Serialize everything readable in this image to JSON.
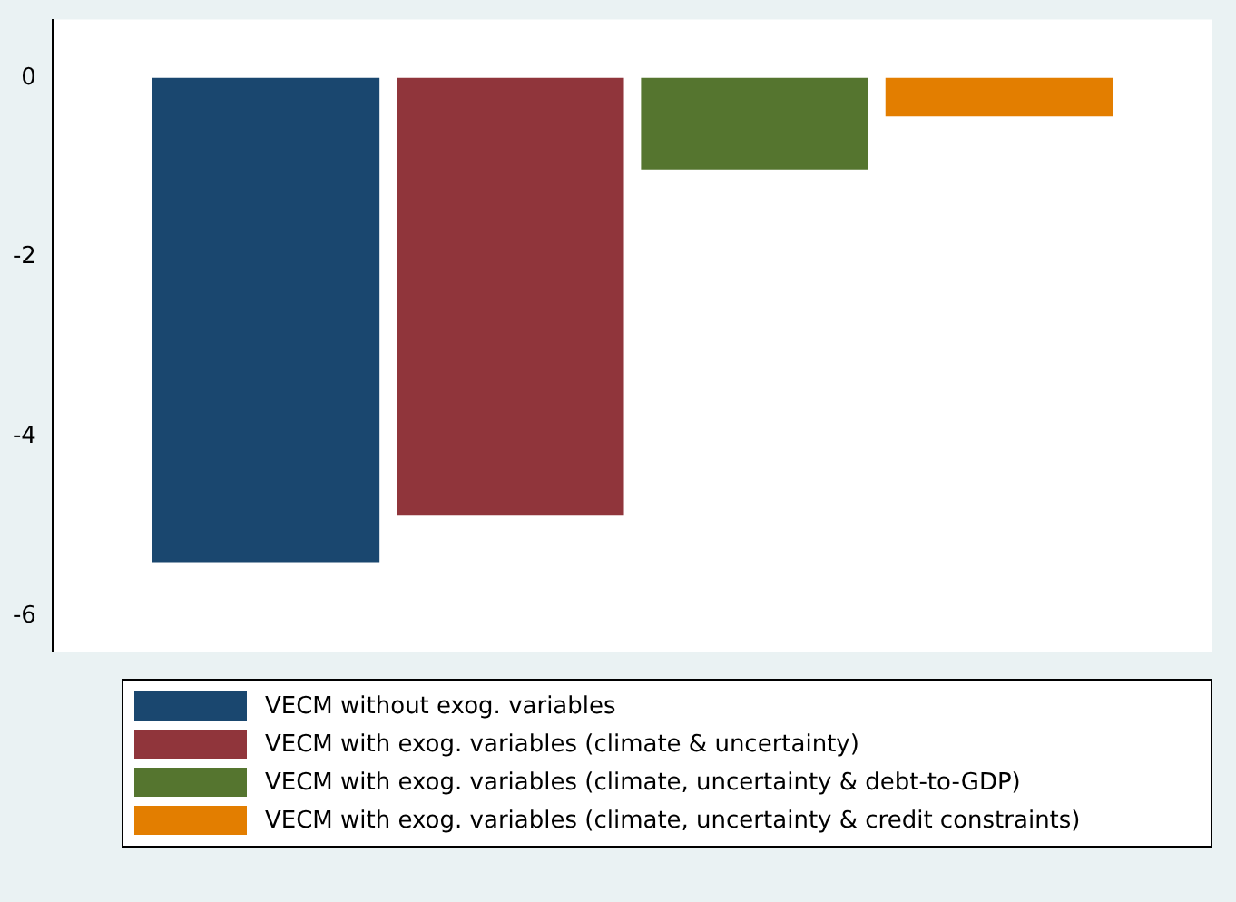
{
  "chart_data": {
    "type": "bar",
    "categories": [
      null
    ],
    "series": [
      {
        "name": "VECM without exog. variables",
        "color": "#1a476f",
        "values": [
          -5.4
        ]
      },
      {
        "name": "VECM with exog. variables (climate & uncertainty)",
        "color": "#90353b",
        "values": [
          -4.88
        ]
      },
      {
        "name": "VECM with exog. variables (climate, uncertainty & debt-to-GDP)",
        "color": "#55752f",
        "values": [
          -1.02
        ]
      },
      {
        "name": "VECM with exog. variables (climate, uncertainty & credit constraints)",
        "color": "#e37e00",
        "values": [
          -0.43
        ]
      }
    ],
    "ylim": [
      -6.4,
      0.65
    ],
    "yticks": [
      -6,
      -4,
      -2,
      0
    ],
    "grid": false,
    "legend": "bottom"
  }
}
